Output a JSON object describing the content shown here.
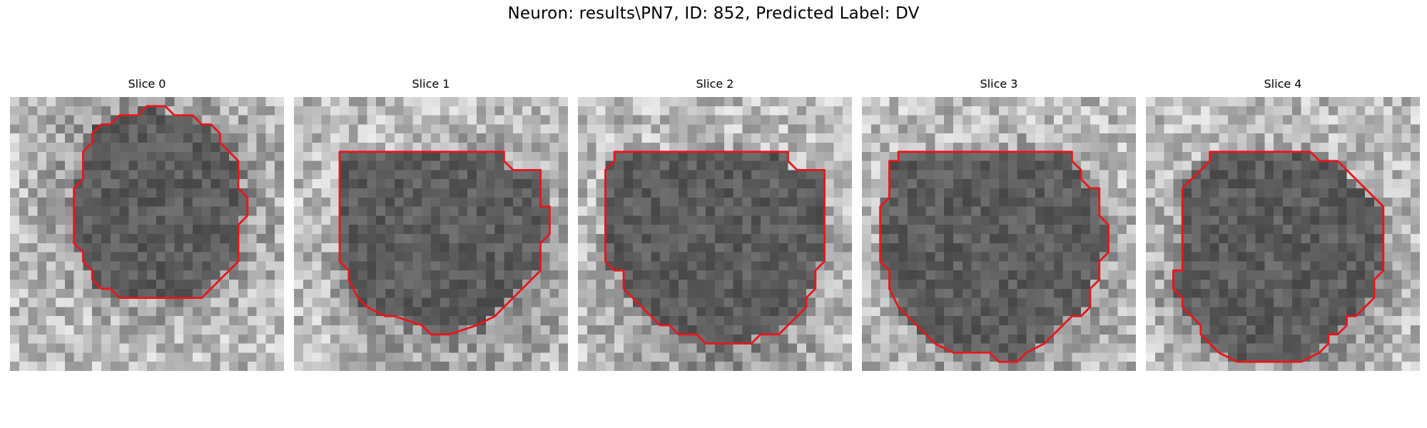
{
  "figure": {
    "title": "Neuron: results\\PN7, ID: 852, Predicted Label: DV",
    "contour_color": "#e8161b",
    "grid_size": 30,
    "colormap": "gray"
  },
  "slices": [
    {
      "title": "Slice 0",
      "contour": [
        [
          15,
          1
        ],
        [
          17,
          1
        ],
        [
          18,
          2
        ],
        [
          20,
          2
        ],
        [
          21,
          3
        ],
        [
          22,
          3
        ],
        [
          23,
          4
        ],
        [
          23,
          5
        ],
        [
          24,
          6
        ],
        [
          25,
          7
        ],
        [
          25,
          10
        ],
        [
          26,
          11
        ],
        [
          26,
          13
        ],
        [
          25,
          14
        ],
        [
          25,
          18
        ],
        [
          24,
          19
        ],
        [
          23,
          20
        ],
        [
          22,
          21
        ],
        [
          21,
          22
        ],
        [
          20,
          22
        ],
        [
          20,
          22
        ],
        [
          13,
          22
        ],
        [
          12,
          22
        ],
        [
          11,
          21
        ],
        [
          10,
          21
        ],
        [
          9,
          20
        ],
        [
          9,
          19
        ],
        [
          8,
          18
        ],
        [
          8,
          17
        ],
        [
          7,
          16
        ],
        [
          7,
          10
        ],
        [
          8,
          9
        ],
        [
          8,
          6
        ],
        [
          9,
          5
        ],
        [
          9,
          4
        ],
        [
          10,
          3
        ],
        [
          11,
          3
        ],
        [
          12,
          2
        ],
        [
          14,
          2
        ]
      ]
    },
    {
      "title": "Slice 1",
      "contour": [
        [
          5,
          6
        ],
        [
          23,
          6
        ],
        [
          23,
          7
        ],
        [
          24,
          8
        ],
        [
          27,
          8
        ],
        [
          27,
          12
        ],
        [
          28,
          12
        ],
        [
          28,
          15
        ],
        [
          27,
          16
        ],
        [
          27,
          19
        ],
        [
          26,
          20
        ],
        [
          25,
          21
        ],
        [
          24,
          22
        ],
        [
          23,
          23
        ],
        [
          22,
          24
        ],
        [
          20,
          25
        ],
        [
          17,
          26
        ],
        [
          15,
          26
        ],
        [
          14,
          25
        ],
        [
          11,
          24
        ],
        [
          10,
          24
        ],
        [
          8,
          23
        ],
        [
          7,
          22
        ],
        [
          6,
          20
        ],
        [
          6,
          19
        ],
        [
          5,
          18
        ],
        [
          5,
          7
        ]
      ]
    },
    {
      "title": "Slice 2",
      "contour": [
        [
          4,
          6
        ],
        [
          23,
          6
        ],
        [
          23,
          7
        ],
        [
          24,
          8
        ],
        [
          27,
          8
        ],
        [
          27,
          18
        ],
        [
          26,
          19
        ],
        [
          26,
          21
        ],
        [
          25,
          22
        ],
        [
          25,
          23
        ],
        [
          24,
          24
        ],
        [
          23,
          25
        ],
        [
          22,
          26
        ],
        [
          20,
          26
        ],
        [
          19,
          27
        ],
        [
          17,
          27
        ],
        [
          16,
          27
        ],
        [
          14,
          27
        ],
        [
          13,
          26
        ],
        [
          11,
          26
        ],
        [
          10,
          25
        ],
        [
          9,
          25
        ],
        [
          8,
          24
        ],
        [
          7,
          23
        ],
        [
          6,
          22
        ],
        [
          5,
          21
        ],
        [
          5,
          19
        ],
        [
          4,
          19
        ],
        [
          3,
          18
        ],
        [
          3,
          8
        ],
        [
          4,
          7
        ]
      ]
    },
    {
      "title": "Slice 3",
      "contour": [
        [
          4,
          6
        ],
        [
          23,
          6
        ],
        [
          23,
          7
        ],
        [
          24,
          8
        ],
        [
          24,
          9
        ],
        [
          25,
          10
        ],
        [
          26,
          10
        ],
        [
          26,
          13
        ],
        [
          27,
          14
        ],
        [
          27,
          17
        ],
        [
          26,
          18
        ],
        [
          26,
          20
        ],
        [
          25,
          21
        ],
        [
          25,
          23
        ],
        [
          24,
          24
        ],
        [
          23,
          24
        ],
        [
          22,
          25
        ],
        [
          21,
          26
        ],
        [
          20,
          27
        ],
        [
          18,
          28
        ],
        [
          17,
          29
        ],
        [
          16,
          29
        ],
        [
          15,
          29
        ],
        [
          14,
          28
        ],
        [
          11,
          28
        ],
        [
          10,
          28
        ],
        [
          8,
          27
        ],
        [
          7,
          26
        ],
        [
          6,
          25
        ],
        [
          5,
          24
        ],
        [
          4,
          23
        ],
        [
          3,
          21
        ],
        [
          3,
          19
        ],
        [
          2,
          18
        ],
        [
          2,
          16
        ],
        [
          2,
          12
        ],
        [
          3,
          11
        ],
        [
          3,
          7
        ],
        [
          4,
          7
        ]
      ]
    },
    {
      "title": "Slice 4",
      "contour": [
        [
          7,
          6
        ],
        [
          18,
          6
        ],
        [
          19,
          7
        ],
        [
          21,
          7
        ],
        [
          22,
          8
        ],
        [
          23,
          9
        ],
        [
          24,
          10
        ],
        [
          25,
          11
        ],
        [
          26,
          12
        ],
        [
          26,
          19
        ],
        [
          25,
          20
        ],
        [
          25,
          22
        ],
        [
          24,
          23
        ],
        [
          23,
          24
        ],
        [
          22,
          24
        ],
        [
          22,
          25
        ],
        [
          21,
          26
        ],
        [
          20,
          26
        ],
        [
          20,
          27
        ],
        [
          19,
          28
        ],
        [
          17,
          29
        ],
        [
          16,
          29
        ],
        [
          12,
          29
        ],
        [
          10,
          29
        ],
        [
          8,
          28
        ],
        [
          7,
          27
        ],
        [
          6,
          26
        ],
        [
          6,
          25
        ],
        [
          5,
          24
        ],
        [
          4,
          23
        ],
        [
          4,
          22
        ],
        [
          3,
          21
        ],
        [
          3,
          20
        ],
        [
          3,
          19
        ],
        [
          4,
          19
        ],
        [
          4,
          10
        ],
        [
          5,
          9
        ],
        [
          5,
          9
        ],
        [
          6,
          8
        ],
        [
          7,
          7
        ]
      ]
    }
  ]
}
